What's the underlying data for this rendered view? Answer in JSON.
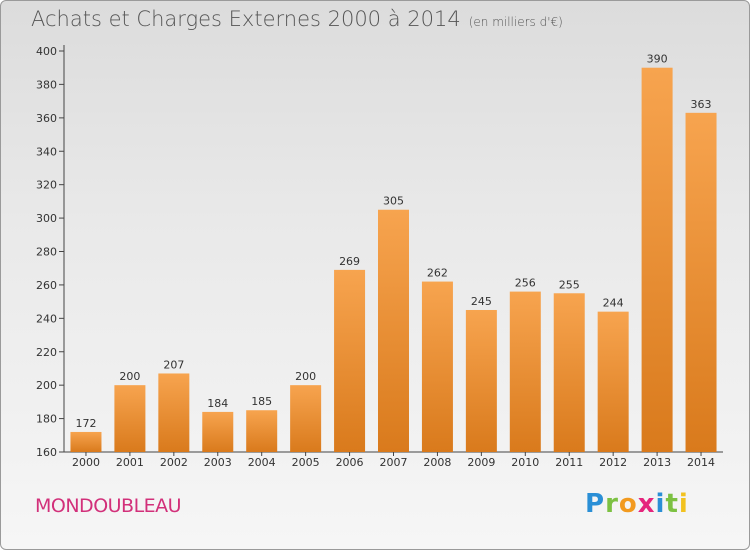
{
  "header": {
    "title": "Achats et Charges Externes 2000 à 2014",
    "subtitle": "(en milliers d'€)"
  },
  "footer": {
    "commune": "MONDOUBLEAU",
    "logo_letters": [
      "P",
      "r",
      "o",
      "x",
      "i",
      "t",
      "i"
    ]
  },
  "colors": {
    "bar_top": "#f7a44f",
    "bar_bottom": "#d97a1c",
    "commune": "#d2307a"
  },
  "chart_data": {
    "type": "bar",
    "title": "Achats et Charges Externes 2000 à 2014",
    "subtitle": "(en milliers d'€)",
    "categories": [
      "2000",
      "2001",
      "2002",
      "2003",
      "2004",
      "2005",
      "2006",
      "2007",
      "2008",
      "2009",
      "2010",
      "2011",
      "2012",
      "2013",
      "2014"
    ],
    "values": [
      172,
      200,
      207,
      184,
      185,
      200,
      269,
      305,
      262,
      245,
      256,
      255,
      244,
      390,
      363
    ],
    "ylim": [
      160,
      400
    ],
    "yticks": [
      160,
      180,
      200,
      220,
      240,
      260,
      280,
      300,
      320,
      340,
      360,
      380,
      400
    ],
    "xlabel": "",
    "ylabel": "",
    "grid": false
  }
}
